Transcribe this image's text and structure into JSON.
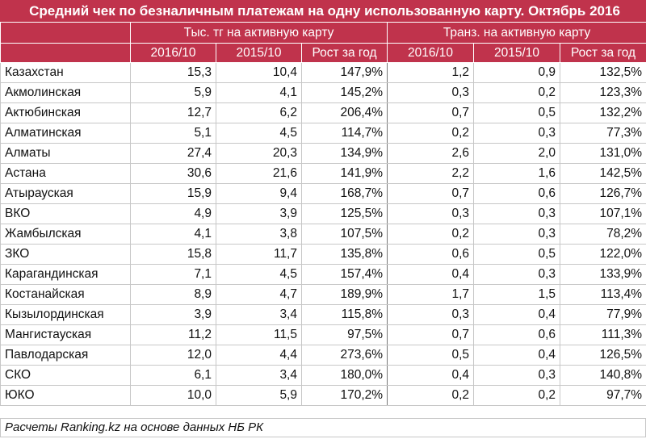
{
  "title": "Средний чек по безналичным платежам на одну использованную карту. Октябрь 2016",
  "groups": [
    "Тыс. тг на активную карту",
    "Транз. на активную карту"
  ],
  "subheaders": [
    "2016/10",
    "2015/10",
    "Рост за год",
    "2016/10",
    "2015/10",
    "Рост за год"
  ],
  "rows": [
    {
      "name": "Казахстан",
      "v": [
        "15,3",
        "10,4",
        "147,9%",
        "1,2",
        "0,9",
        "132,5%"
      ]
    },
    {
      "name": "Акмолинская",
      "v": [
        "5,9",
        "4,1",
        "145,2%",
        "0,3",
        "0,2",
        "123,3%"
      ]
    },
    {
      "name": "Актюбинская",
      "v": [
        "12,7",
        "6,2",
        "206,4%",
        "0,7",
        "0,5",
        "132,2%"
      ]
    },
    {
      "name": "Алматинская",
      "v": [
        "5,1",
        "4,5",
        "114,7%",
        "0,2",
        "0,3",
        "77,3%"
      ]
    },
    {
      "name": "Алматы",
      "v": [
        "27,4",
        "20,3",
        "134,9%",
        "2,6",
        "2,0",
        "131,0%"
      ]
    },
    {
      "name": "Астана",
      "v": [
        "30,6",
        "21,6",
        "141,9%",
        "2,2",
        "1,6",
        "142,5%"
      ]
    },
    {
      "name": "Атырауская",
      "v": [
        "15,9",
        "9,4",
        "168,7%",
        "0,7",
        "0,6",
        "126,7%"
      ]
    },
    {
      "name": "ВКО",
      "v": [
        "4,9",
        "3,9",
        "125,5%",
        "0,3",
        "0,3",
        "107,1%"
      ]
    },
    {
      "name": "Жамбылская",
      "v": [
        "4,1",
        "3,8",
        "107,5%",
        "0,2",
        "0,3",
        "78,2%"
      ]
    },
    {
      "name": "ЗКО",
      "v": [
        "15,8",
        "11,7",
        "135,8%",
        "0,6",
        "0,5",
        "122,0%"
      ]
    },
    {
      "name": "Карагандинская",
      "v": [
        "7,1",
        "4,5",
        "157,4%",
        "0,4",
        "0,3",
        "133,9%"
      ]
    },
    {
      "name": "Костанайская",
      "v": [
        "8,9",
        "4,7",
        "189,9%",
        "1,7",
        "1,5",
        "113,4%"
      ]
    },
    {
      "name": "Кызылординская",
      "v": [
        "3,9",
        "3,4",
        "115,8%",
        "0,3",
        "0,4",
        "77,9%"
      ]
    },
    {
      "name": "Мангистауская",
      "v": [
        "11,2",
        "11,5",
        "97,5%",
        "0,7",
        "0,6",
        "111,3%"
      ]
    },
    {
      "name": "Павлодарская",
      "v": [
        "12,0",
        "4,4",
        "273,6%",
        "0,5",
        "0,4",
        "126,5%"
      ]
    },
    {
      "name": "СКО",
      "v": [
        "6,1",
        "3,4",
        "180,0%",
        "0,4",
        "0,3",
        "140,8%"
      ]
    },
    {
      "name": "ЮКО",
      "v": [
        "10,0",
        "5,9",
        "170,2%",
        "0,2",
        "0,2",
        "97,7%"
      ]
    }
  ],
  "footer": "Расчеты Ranking.kz на основе данных НБ РК",
  "colors": {
    "header_bg": "#c0334c",
    "header_text": "#ffffff",
    "grid_line": "#c7c7c7"
  }
}
